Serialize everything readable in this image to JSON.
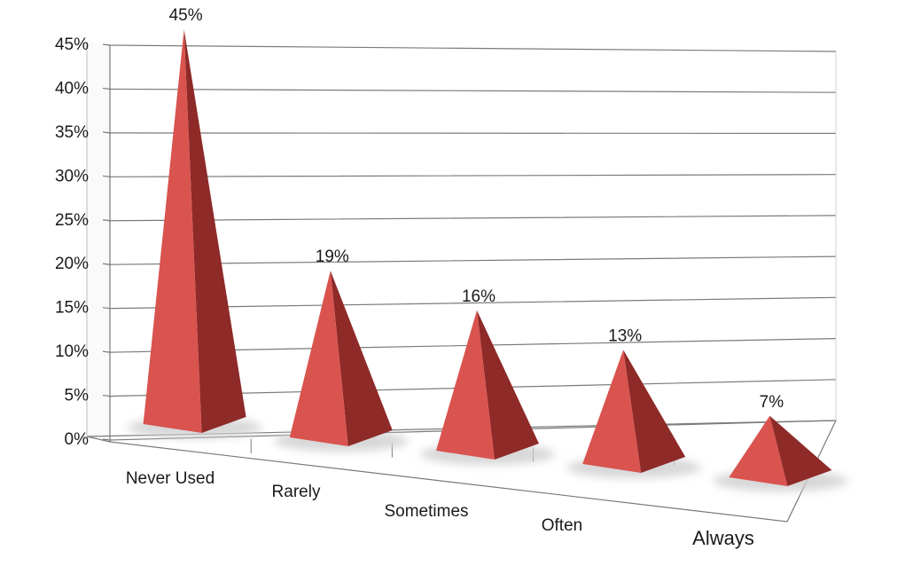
{
  "chart_data": {
    "type": "bar",
    "bar_shape": "pyramid",
    "style": "3d",
    "categories": [
      "Never Used",
      "Rarely",
      "Sometimes",
      "Often",
      "Always"
    ],
    "values": [
      45,
      19,
      16,
      13,
      7
    ],
    "data_labels": [
      "45%",
      "19%",
      "16%",
      "13%",
      "7%"
    ],
    "y_ticks": [
      "0%",
      "5%",
      "10%",
      "15%",
      "20%",
      "25%",
      "30%",
      "35%",
      "40%",
      "45%"
    ],
    "ylim": [
      0,
      45
    ],
    "grid": true,
    "legend": "none",
    "colors": {
      "front_face": "#d9534f",
      "side_face": "#8e2a28",
      "shadow": "#d0d0d0",
      "grid": "#7a7a7a"
    }
  }
}
